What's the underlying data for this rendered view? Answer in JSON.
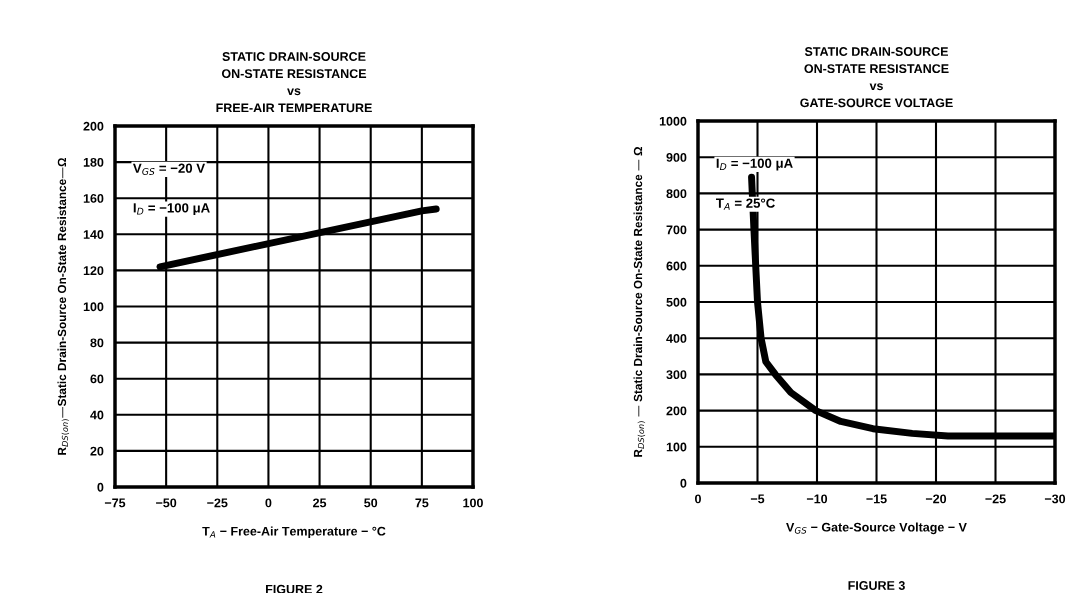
{
  "chart_data": [
    {
      "type": "line",
      "title": "STATIC DRAIN-SOURCE\nON-STATE RESISTANCE\nvs\nFREE-AIR TEMPERATURE",
      "xlabel": "T$_{A}$ − Free-Air Temperature − °C",
      "ylabel": "R$_{DS(on)}$—Static Drain-Source On-State Resistance—Ω",
      "series": [
        {
          "color": "#000000",
          "x": [
            -53,
            75,
            82
          ],
          "values": [
            122,
            153,
            154
          ]
        }
      ],
      "xlim": [
        -75,
        100
      ],
      "xticks": [
        {
          "value": -75,
          "label": "−75"
        },
        {
          "value": -50,
          "label": "−50"
        },
        {
          "value": -25,
          "label": "−25"
        },
        0,
        25,
        50,
        75,
        100
      ],
      "ylim": [
        0,
        200
      ],
      "yticks": [
        0,
        20,
        40,
        60,
        80,
        100,
        120,
        140,
        160,
        180,
        200
      ],
      "grid": true,
      "marker": "none",
      "line_style": "solid",
      "annotations": [
        "V$_{GS}$ = −20 V",
        "I$_{D}$ = −100 μA",
        "FIGURE 2"
      ]
    },
    {
      "type": "line",
      "title": "STATIC DRAIN-SOURCE\nON-STATE RESISTANCE\nvs\nGATE-SOURCE VOLTAGE",
      "xlabel": "V$_{GS}$ − Gate-Source Voltage − V",
      "ylabel": "R$_{DS(on)}$ — Static Drain-Source On-State Resistance — Ω",
      "series": [
        {
          "color": "#000000",
          "x": [
            -4.5,
            -4.7,
            -5.0,
            -5.3,
            -5.7,
            -6.5,
            -7.8,
            -9.9,
            -12,
            -14.7,
            -18,
            -21,
            -25,
            -30
          ],
          "values": [
            845,
            700,
            500,
            400,
            335,
            300,
            250,
            200,
            170,
            150,
            137,
            130,
            130,
            130
          ]
        }
      ],
      "xlim": [
        0,
        -30
      ],
      "xticks": [
        0,
        {
          "value": -5,
          "label": "−5"
        },
        {
          "value": -10,
          "label": "−10"
        },
        {
          "value": -15,
          "label": "−15"
        },
        {
          "value": -20,
          "label": "−20"
        },
        {
          "value": -25,
          "label": "−25"
        },
        {
          "value": -30,
          "label": "−30"
        }
      ],
      "ylim": [
        0,
        1000
      ],
      "yticks": [
        0,
        100,
        200,
        300,
        400,
        500,
        600,
        700,
        800,
        900,
        1000
      ],
      "grid": true,
      "marker": "none",
      "line_style": "solid",
      "annotations": [
        "I$_{D}$ = −100 μA",
        "T$_{A}$ = 25°C",
        "FIGURE 3"
      ]
    }
  ]
}
